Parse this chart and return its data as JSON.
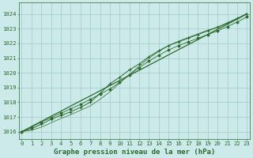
{
  "title": "Graphe pression niveau de la mer (hPa)",
  "x_labels": [
    "0",
    "1",
    "2",
    "3",
    "4",
    "5",
    "6",
    "7",
    "8",
    "9",
    "10",
    "11",
    "12",
    "13",
    "14",
    "15",
    "16",
    "17",
    "18",
    "19",
    "20",
    "21",
    "22",
    "23"
  ],
  "x_values": [
    0,
    1,
    2,
    3,
    4,
    5,
    6,
    7,
    8,
    9,
    10,
    11,
    12,
    13,
    14,
    15,
    16,
    17,
    18,
    19,
    20,
    21,
    22,
    23
  ],
  "line_straight": [
    1016.0,
    1016.35,
    1016.7,
    1017.05,
    1017.39,
    1017.74,
    1018.09,
    1018.43,
    1018.78,
    1019.13,
    1019.48,
    1019.83,
    1020.17,
    1020.52,
    1020.87,
    1021.22,
    1021.57,
    1021.91,
    1022.26,
    1022.61,
    1022.96,
    1023.3,
    1023.65,
    1024.0
  ],
  "line_plus": [
    1016.0,
    1016.2,
    1016.5,
    1016.85,
    1017.1,
    1017.35,
    1017.65,
    1018.0,
    1018.6,
    1019.25,
    1019.7,
    1020.2,
    1020.6,
    1021.1,
    1021.5,
    1021.85,
    1022.1,
    1022.35,
    1022.6,
    1022.85,
    1023.1,
    1023.4,
    1023.7,
    1024.0
  ],
  "line_dot": [
    1016.0,
    1016.3,
    1016.65,
    1016.95,
    1017.25,
    1017.55,
    1017.85,
    1018.2,
    1018.55,
    1018.9,
    1019.35,
    1019.85,
    1020.35,
    1020.8,
    1021.2,
    1021.55,
    1021.85,
    1022.1,
    1022.35,
    1022.6,
    1022.85,
    1023.15,
    1023.45,
    1023.8
  ],
  "line_thin": [
    1016.0,
    1016.1,
    1016.3,
    1016.6,
    1016.9,
    1017.15,
    1017.45,
    1017.75,
    1018.2,
    1018.7,
    1019.3,
    1019.9,
    1020.45,
    1021.0,
    1021.45,
    1021.85,
    1022.15,
    1022.4,
    1022.65,
    1022.9,
    1023.1,
    1023.35,
    1023.65,
    1024.05
  ],
  "line_color": "#2d6a2d",
  "bg_color": "#cceaea",
  "grid_color": "#9bbfbf",
  "ylim": [
    1015.5,
    1024.8
  ],
  "xlim": [
    -0.3,
    23.3
  ],
  "yticks": [
    1016,
    1017,
    1018,
    1019,
    1020,
    1021,
    1022,
    1023,
    1024
  ],
  "title_fontsize": 6.5,
  "tick_fontsize": 5.2
}
